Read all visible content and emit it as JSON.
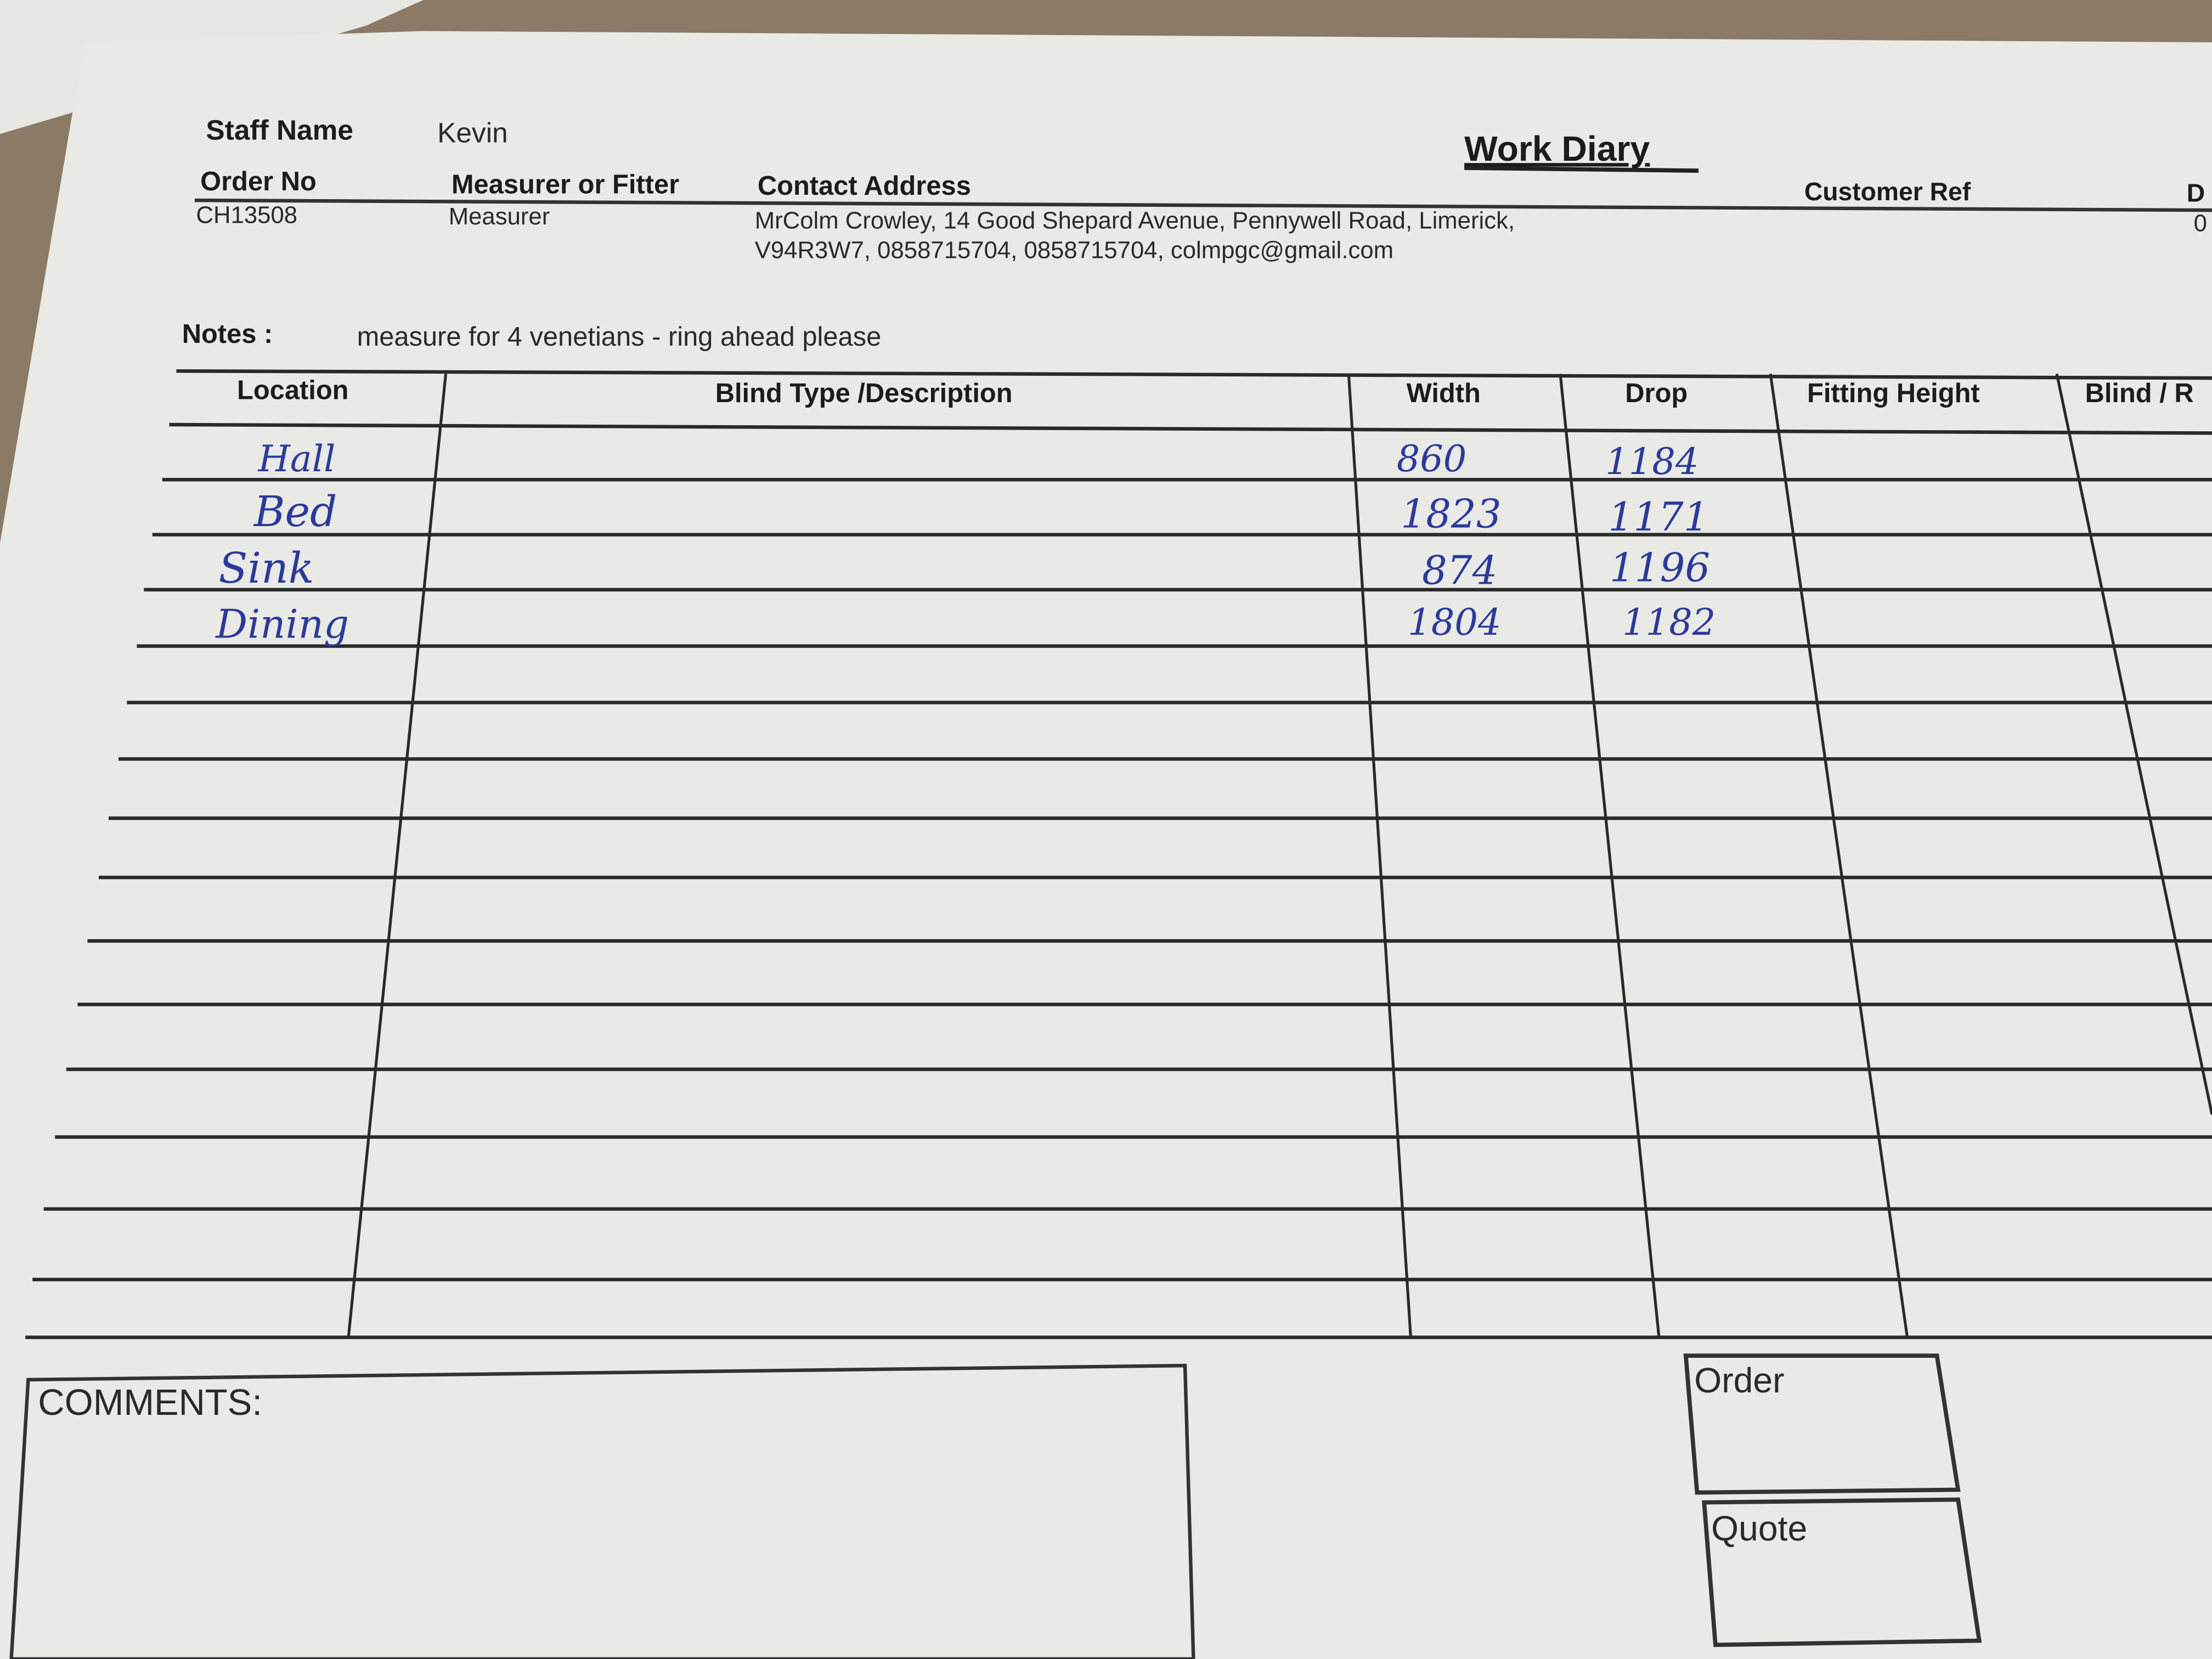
{
  "form": {
    "title": "Work Diary",
    "staff_name_label": "Staff Name",
    "staff_name": "Kevin",
    "order_no_label": "Order No",
    "order_no": "CH13508",
    "role_label": "Measurer or Fitter",
    "role": "Measurer",
    "contact_label": "Contact Address",
    "contact_line1": "MrColm Crowley, 14 Good Shepard Avenue, Pennywell Road, Limerick,",
    "contact_line2": "V94R3W7, 0858715704, 0858715704, colmpgc@gmail.com",
    "customer_ref_label": "Customer Ref",
    "cut_label": "D",
    "cut_value": "0",
    "notes_label": "Notes :",
    "notes": "measure for 4 venetians - ring ahead please"
  },
  "table": {
    "headers": [
      "Location",
      "Blind Type /Description",
      "Width",
      "Drop",
      "Fitting Height",
      "Blind / R"
    ],
    "rows": [
      {
        "location": "Hall",
        "width": "860",
        "drop": "1184"
      },
      {
        "location": "Bed",
        "width": "1823",
        "drop": "1171"
      },
      {
        "location": "Sink",
        "width": "874",
        "drop": "1196"
      },
      {
        "location": "Dining",
        "width": "1804",
        "drop": "1182"
      }
    ]
  },
  "footer": {
    "comments_label": "COMMENTS:",
    "order_label": "Order",
    "quote_label": "Quote"
  },
  "colors": {
    "ink": "#2b3a9a",
    "paper": "#e8e8e5",
    "wood": "#8a7a66"
  }
}
